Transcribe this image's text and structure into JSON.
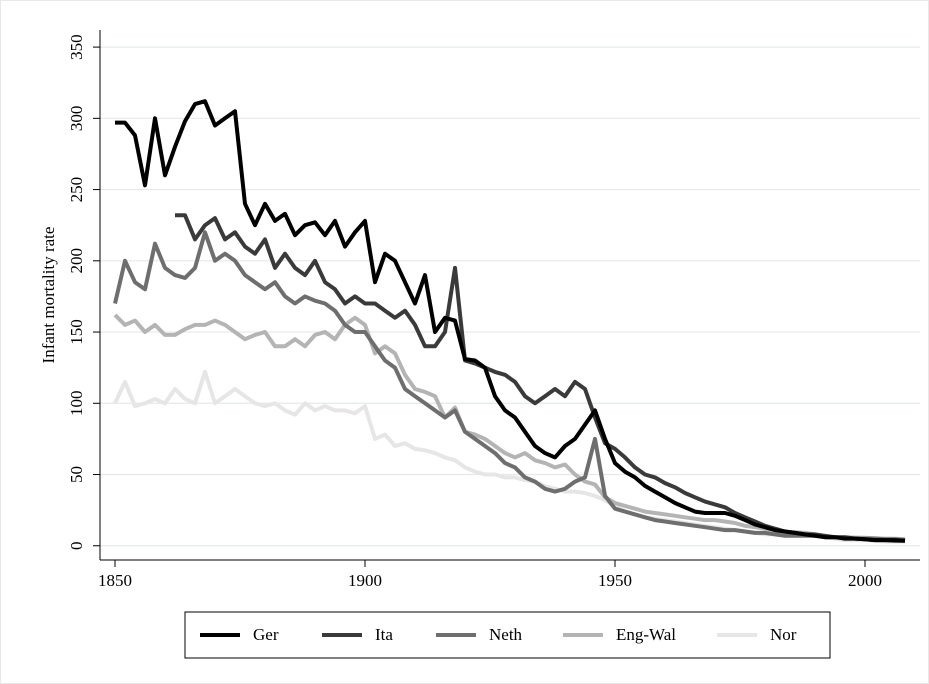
{
  "chart_data": {
    "type": "line",
    "y_label": "Infant mortality rate",
    "x": [
      1850,
      1852,
      1854,
      1856,
      1858,
      1860,
      1862,
      1864,
      1866,
      1868,
      1870,
      1872,
      1874,
      1876,
      1878,
      1880,
      1882,
      1884,
      1886,
      1888,
      1890,
      1892,
      1894,
      1896,
      1898,
      1900,
      1902,
      1904,
      1906,
      1908,
      1910,
      1912,
      1914,
      1916,
      1918,
      1920,
      1922,
      1924,
      1926,
      1928,
      1930,
      1932,
      1934,
      1936,
      1938,
      1940,
      1942,
      1944,
      1946,
      1948,
      1950,
      1952,
      1954,
      1956,
      1958,
      1960,
      1962,
      1964,
      1966,
      1968,
      1970,
      1972,
      1974,
      1976,
      1978,
      1980,
      1982,
      1984,
      1986,
      1988,
      1990,
      1992,
      1994,
      1996,
      1998,
      2000,
      2002,
      2004,
      2006,
      2008
    ],
    "series": [
      {
        "name": "Ger",
        "color": "#000000",
        "values": [
          297,
          297,
          288,
          253,
          300,
          260,
          280,
          298,
          310,
          312,
          295,
          300,
          305,
          240,
          225,
          240,
          228,
          233,
          218,
          225,
          227,
          218,
          228,
          210,
          220,
          228,
          185,
          205,
          200,
          185,
          170,
          190,
          150,
          160,
          158,
          131,
          130,
          125,
          105,
          95,
          90,
          80,
          70,
          65,
          62,
          70,
          75,
          85,
          95,
          75,
          58,
          52,
          48,
          42,
          38,
          34,
          30,
          27,
          24,
          23,
          23,
          23,
          21,
          18,
          15,
          13,
          11,
          10,
          9,
          8,
          7,
          6,
          6,
          5,
          5,
          4.5,
          4,
          4,
          4,
          3.5
        ]
      },
      {
        "name": "Ita",
        "color": "#3a3a3a",
        "values": [
          null,
          null,
          null,
          null,
          null,
          null,
          232,
          232,
          215,
          225,
          230,
          215,
          220,
          210,
          205,
          215,
          195,
          205,
          195,
          190,
          200,
          185,
          180,
          170,
          175,
          170,
          170,
          165,
          160,
          165,
          155,
          140,
          140,
          150,
          195,
          130,
          128,
          125,
          122,
          120,
          115,
          105,
          100,
          105,
          110,
          105,
          115,
          110,
          90,
          72,
          68,
          62,
          55,
          50,
          48,
          44,
          41,
          37,
          34,
          31,
          29,
          27,
          23,
          20,
          17,
          14,
          12,
          10,
          9,
          8,
          8,
          7,
          6,
          6,
          5,
          4.5,
          4,
          4,
          3.5,
          3.5
        ]
      },
      {
        "name": "Neth",
        "color": "#6e6e6e",
        "values": [
          170,
          200,
          185,
          180,
          212,
          195,
          190,
          188,
          195,
          220,
          200,
          205,
          200,
          190,
          185,
          180,
          185,
          175,
          170,
          175,
          172,
          170,
          165,
          155,
          150,
          150,
          140,
          130,
          125,
          110,
          105,
          100,
          95,
          90,
          95,
          80,
          75,
          70,
          65,
          58,
          55,
          48,
          45,
          40,
          38,
          40,
          45,
          48,
          75,
          35,
          26,
          24,
          22,
          20,
          18,
          17,
          16,
          15,
          14,
          13,
          12,
          11,
          11,
          10,
          9,
          9,
          8,
          7,
          7,
          7,
          7,
          6,
          6,
          5.5,
          5,
          5,
          5,
          4.5,
          4.5,
          4
        ]
      },
      {
        "name": "Eng-Wal",
        "color": "#b4b4b4",
        "values": [
          162,
          155,
          158,
          150,
          155,
          148,
          148,
          152,
          155,
          155,
          158,
          155,
          150,
          145,
          148,
          150,
          140,
          140,
          145,
          140,
          148,
          150,
          145,
          155,
          160,
          155,
          135,
          140,
          135,
          120,
          110,
          108,
          105,
          90,
          97,
          80,
          78,
          75,
          70,
          65,
          62,
          65,
          60,
          58,
          55,
          57,
          50,
          45,
          43,
          34,
          30,
          28,
          26,
          24,
          23,
          22,
          21,
          20,
          19,
          18,
          18,
          17,
          16,
          14,
          13,
          12,
          11,
          9.5,
          9.5,
          9,
          8,
          6.5,
          6,
          6,
          5.7,
          5.6,
          5.3,
          5,
          4.9,
          4.7
        ]
      },
      {
        "name": "Nor",
        "color": "#e6e6e6",
        "values": [
          100,
          115,
          98,
          100,
          103,
          100,
          110,
          103,
          100,
          122,
          100,
          105,
          110,
          105,
          100,
          98,
          100,
          95,
          92,
          100,
          95,
          98,
          95,
          95,
          93,
          98,
          75,
          78,
          70,
          72,
          68,
          67,
          65,
          62,
          60,
          55,
          52,
          50,
          50,
          48,
          48,
          46,
          45,
          42,
          40,
          38,
          38,
          37,
          35,
          32,
          28,
          24,
          22,
          20,
          19,
          18,
          17,
          16,
          15,
          14,
          13,
          12,
          11,
          10,
          9,
          8,
          8,
          8,
          8,
          8,
          7,
          6,
          5,
          4,
          4,
          4,
          3.5,
          3,
          3,
          3
        ]
      }
    ],
    "xlim": [
      1847,
      2011
    ],
    "xticks": [
      1850,
      1900,
      1950,
      2000
    ],
    "ylim": [
      -10,
      362
    ],
    "yticks": [
      0,
      50,
      100,
      150,
      200,
      250,
      300,
      350
    ],
    "grid": true,
    "legend": "bottom"
  }
}
